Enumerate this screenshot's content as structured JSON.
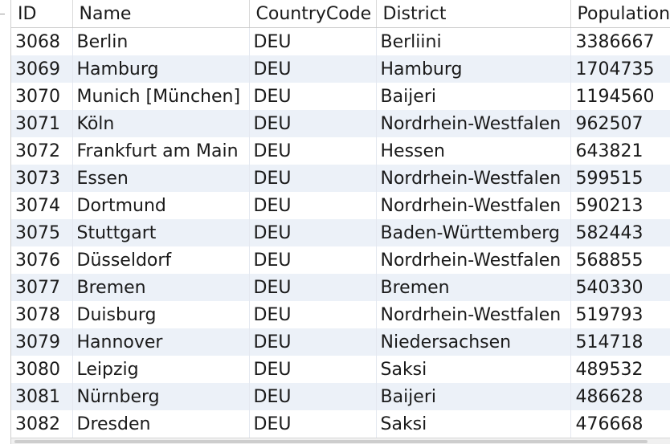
{
  "grid": {
    "columns": [
      "ID",
      "Name",
      "CountryCode",
      "District",
      "Population"
    ],
    "rows": [
      [
        "3068",
        "Berlin",
        "DEU",
        "Berliini",
        "3386667"
      ],
      [
        "3069",
        "Hamburg",
        "DEU",
        "Hamburg",
        "1704735"
      ],
      [
        "3070",
        "Munich [München]",
        "DEU",
        "Baijeri",
        "1194560"
      ],
      [
        "3071",
        "Köln",
        "DEU",
        "Nordrhein-Westfalen",
        "962507"
      ],
      [
        "3072",
        "Frankfurt am Main",
        "DEU",
        "Hessen",
        "643821"
      ],
      [
        "3073",
        "Essen",
        "DEU",
        "Nordrhein-Westfalen",
        "599515"
      ],
      [
        "3074",
        "Dortmund",
        "DEU",
        "Nordrhein-Westfalen",
        "590213"
      ],
      [
        "3075",
        "Stuttgart",
        "DEU",
        "Baden-Württemberg",
        "582443"
      ],
      [
        "3076",
        "Düsseldorf",
        "DEU",
        "Nordrhein-Westfalen",
        "568855"
      ],
      [
        "3077",
        "Bremen",
        "DEU",
        "Bremen",
        "540330"
      ],
      [
        "3078",
        "Duisburg",
        "DEU",
        "Nordrhein-Westfalen",
        "519793"
      ],
      [
        "3079",
        "Hannover",
        "DEU",
        "Niedersachsen",
        "514718"
      ],
      [
        "3080",
        "Leipzig",
        "DEU",
        "Saksi",
        "489532"
      ],
      [
        "3081",
        "Nürnberg",
        "DEU",
        "Baijeri",
        "486628"
      ],
      [
        "3082",
        "Dresden",
        "DEU",
        "Saksi",
        "476668"
      ]
    ]
  },
  "colors": {
    "row_alt": "#ecf1f8",
    "row_base": "#ffffff",
    "text": "#1a1a1a"
  }
}
